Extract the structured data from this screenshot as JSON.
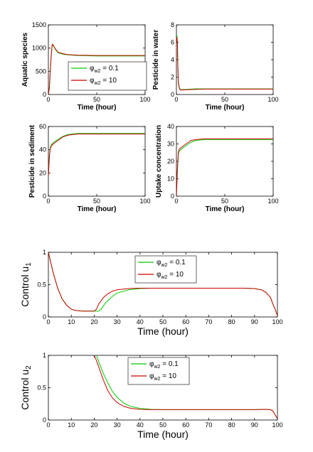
{
  "colors": {
    "green": "#00cc00",
    "red": "#cc0000"
  },
  "chart_data": [
    {
      "type": "line",
      "ylabel": "Aquatic species",
      "xlabel": "Time (hour)",
      "xlim": [
        0,
        100
      ],
      "ylim": [
        0,
        1500
      ],
      "xticks": [
        "0",
        "50",
        "100"
      ],
      "yticks": [
        "0",
        "500",
        "1000",
        "1500"
      ],
      "legend": "inside",
      "series": [
        {
          "name": "φw2 = 0.1",
          "color": "green",
          "x": [
            0,
            1,
            2,
            3,
            4,
            5,
            7,
            10,
            15,
            20,
            30,
            40,
            50,
            60,
            80,
            100
          ],
          "y": [
            0,
            150,
            500,
            850,
            1050,
            1060,
            980,
            900,
            870,
            855,
            840,
            835,
            830,
            830,
            830,
            830
          ]
        },
        {
          "name": "φw2 = 10",
          "color": "red",
          "x": [
            0,
            1,
            2,
            3,
            4,
            5,
            7,
            10,
            15,
            20,
            30,
            40,
            50,
            60,
            80,
            100
          ],
          "y": [
            0,
            150,
            520,
            880,
            1080,
            1070,
            990,
            910,
            880,
            860,
            848,
            843,
            840,
            840,
            840,
            840
          ]
        }
      ]
    },
    {
      "type": "line",
      "ylabel": "Pesticide in water",
      "xlabel": "Time (hour)",
      "xlim": [
        0,
        100
      ],
      "ylim": [
        0,
        8
      ],
      "xticks": [
        "0",
        "50",
        "100"
      ],
      "yticks": [
        "0",
        "2",
        "4",
        "6",
        "8"
      ],
      "series": [
        {
          "name": "φw2 = 0.1",
          "color": "green",
          "x": [
            0,
            0.5,
            1,
            1.5,
            2,
            3,
            4,
            5,
            10,
            20,
            30,
            50,
            100
          ],
          "y": [
            6.2,
            6.8,
            6.0,
            3.5,
            1.5,
            0.8,
            0.6,
            0.55,
            0.6,
            0.65,
            0.65,
            0.65,
            0.65
          ]
        },
        {
          "name": "φw2 = 10",
          "color": "red",
          "x": [
            0,
            0.5,
            1,
            1.5,
            2,
            3,
            4,
            5,
            10,
            20,
            30,
            50,
            100
          ],
          "y": [
            6.0,
            6.6,
            5.8,
            3.2,
            1.3,
            0.7,
            0.55,
            0.5,
            0.55,
            0.6,
            0.62,
            0.62,
            0.62
          ]
        }
      ]
    },
    {
      "type": "line",
      "ylabel": "Pesticide in sediment",
      "xlabel": "Time (hour)",
      "xlim": [
        0,
        100
      ],
      "ylim": [
        0,
        60
      ],
      "xticks": [
        "0",
        "50",
        "100"
      ],
      "yticks": [
        "0",
        "20",
        "40",
        "60"
      ],
      "series": [
        {
          "name": "φw2 = 0.1",
          "color": "green",
          "x": [
            0,
            1,
            2,
            3,
            5,
            10,
            15,
            20,
            25,
            30,
            40,
            60,
            80,
            100
          ],
          "y": [
            17,
            35,
            42,
            44,
            46,
            49,
            51.5,
            53,
            53.5,
            54,
            54,
            54,
            54,
            54
          ]
        },
        {
          "name": "φw2 = 10",
          "color": "red",
          "x": [
            0,
            1,
            2,
            3,
            5,
            10,
            15,
            20,
            25,
            30,
            40,
            60,
            80,
            100
          ],
          "y": [
            17,
            34,
            41,
            43,
            45,
            48,
            51,
            52.5,
            53,
            53.5,
            53.5,
            53.5,
            53.5,
            53.5
          ]
        }
      ]
    },
    {
      "type": "line",
      "ylabel": "Uptake concentration",
      "xlabel": "Time (hour)",
      "xlim": [
        0,
        100
      ],
      "ylim": [
        0,
        40
      ],
      "xticks": [
        "0",
        "50",
        "100"
      ],
      "yticks": [
        "0",
        "10",
        "20",
        "30",
        "40"
      ],
      "series": [
        {
          "name": "φw2 = 0.1",
          "color": "green",
          "x": [
            0,
            1,
            2,
            3,
            5,
            10,
            15,
            20,
            30,
            40,
            60,
            80,
            100
          ],
          "y": [
            0,
            15,
            24,
            26,
            27,
            29,
            31,
            32,
            32.5,
            32.5,
            32.5,
            32.5,
            32.5
          ]
        },
        {
          "name": "φw2 = 10",
          "color": "red",
          "x": [
            0,
            1,
            2,
            3,
            5,
            10,
            15,
            20,
            30,
            40,
            60,
            80,
            100
          ],
          "y": [
            0,
            16,
            25,
            27,
            28,
            30,
            32,
            32.5,
            33,
            33,
            33,
            33,
            33
          ]
        }
      ]
    },
    {
      "type": "line",
      "ylabel": "Control u1",
      "xlabel": "Time (hour)",
      "xlim": [
        0,
        100
      ],
      "ylim": [
        0,
        1
      ],
      "xticks": [
        "0",
        "10",
        "20",
        "30",
        "40",
        "50",
        "60",
        "70",
        "80",
        "90",
        "100"
      ],
      "yticks": [
        "0",
        "0.5",
        "1"
      ],
      "legend": "top-center",
      "series": [
        {
          "name": "φw2 = 0.1",
          "color": "green",
          "x": [
            0,
            2,
            4,
            6,
            8,
            10,
            12,
            15,
            20,
            22,
            23,
            25,
            28,
            30,
            35,
            40,
            45,
            50,
            60,
            70,
            80,
            85,
            90,
            93,
            95,
            97,
            98,
            99,
            100
          ],
          "y": [
            1,
            0.7,
            0.45,
            0.28,
            0.18,
            0.12,
            0.1,
            0.09,
            0.09,
            0.09,
            0.12,
            0.22,
            0.32,
            0.37,
            0.42,
            0.44,
            0.445,
            0.445,
            0.445,
            0.445,
            0.445,
            0.445,
            0.44,
            0.42,
            0.38,
            0.3,
            0.2,
            0.12,
            0.02
          ]
        },
        {
          "name": "φw2 = 10",
          "color": "red",
          "x": [
            0,
            2,
            4,
            6,
            8,
            10,
            12,
            15,
            20,
            21,
            22,
            24,
            26,
            28,
            30,
            35,
            40,
            45,
            50,
            60,
            70,
            80,
            85,
            90,
            93,
            95,
            97,
            98,
            99,
            100
          ],
          "y": [
            1,
            0.7,
            0.45,
            0.28,
            0.18,
            0.12,
            0.1,
            0.09,
            0.09,
            0.12,
            0.2,
            0.3,
            0.36,
            0.4,
            0.42,
            0.44,
            0.445,
            0.445,
            0.445,
            0.445,
            0.445,
            0.445,
            0.445,
            0.44,
            0.42,
            0.38,
            0.3,
            0.2,
            0.12,
            0.02
          ]
        }
      ]
    },
    {
      "type": "line",
      "ylabel": "Control u2",
      "xlabel": "Time (hour)",
      "xlim": [
        0,
        100
      ],
      "ylim": [
        0,
        1
      ],
      "xticks": [
        "0",
        "10",
        "20",
        "30",
        "40",
        "50",
        "60",
        "70",
        "80",
        "90",
        "100"
      ],
      "yticks": [
        "0",
        "0.5",
        "1"
      ],
      "legend": "top-center",
      "series": [
        {
          "name": "φw2 = 0.1",
          "color": "green",
          "x": [
            21,
            22,
            24,
            26,
            28,
            30,
            33,
            36,
            40,
            45,
            50,
            55,
            60,
            70,
            80,
            90,
            95,
            97,
            98,
            99,
            100
          ],
          "y": [
            1,
            0.9,
            0.72,
            0.57,
            0.44,
            0.35,
            0.26,
            0.21,
            0.18,
            0.165,
            0.16,
            0.16,
            0.16,
            0.16,
            0.16,
            0.16,
            0.165,
            0.16,
            0.14,
            0.08,
            0.02
          ]
        },
        {
          "name": "φw2 = 10",
          "color": "red",
          "x": [
            20,
            21,
            22,
            24,
            26,
            28,
            30,
            33,
            36,
            40,
            45,
            50,
            55,
            60,
            70,
            80,
            90,
            95,
            97,
            98,
            99,
            100
          ],
          "y": [
            1,
            0.92,
            0.82,
            0.62,
            0.45,
            0.34,
            0.27,
            0.21,
            0.18,
            0.165,
            0.16,
            0.16,
            0.16,
            0.16,
            0.16,
            0.16,
            0.16,
            0.165,
            0.16,
            0.14,
            0.08,
            0.02
          ]
        }
      ]
    }
  ]
}
